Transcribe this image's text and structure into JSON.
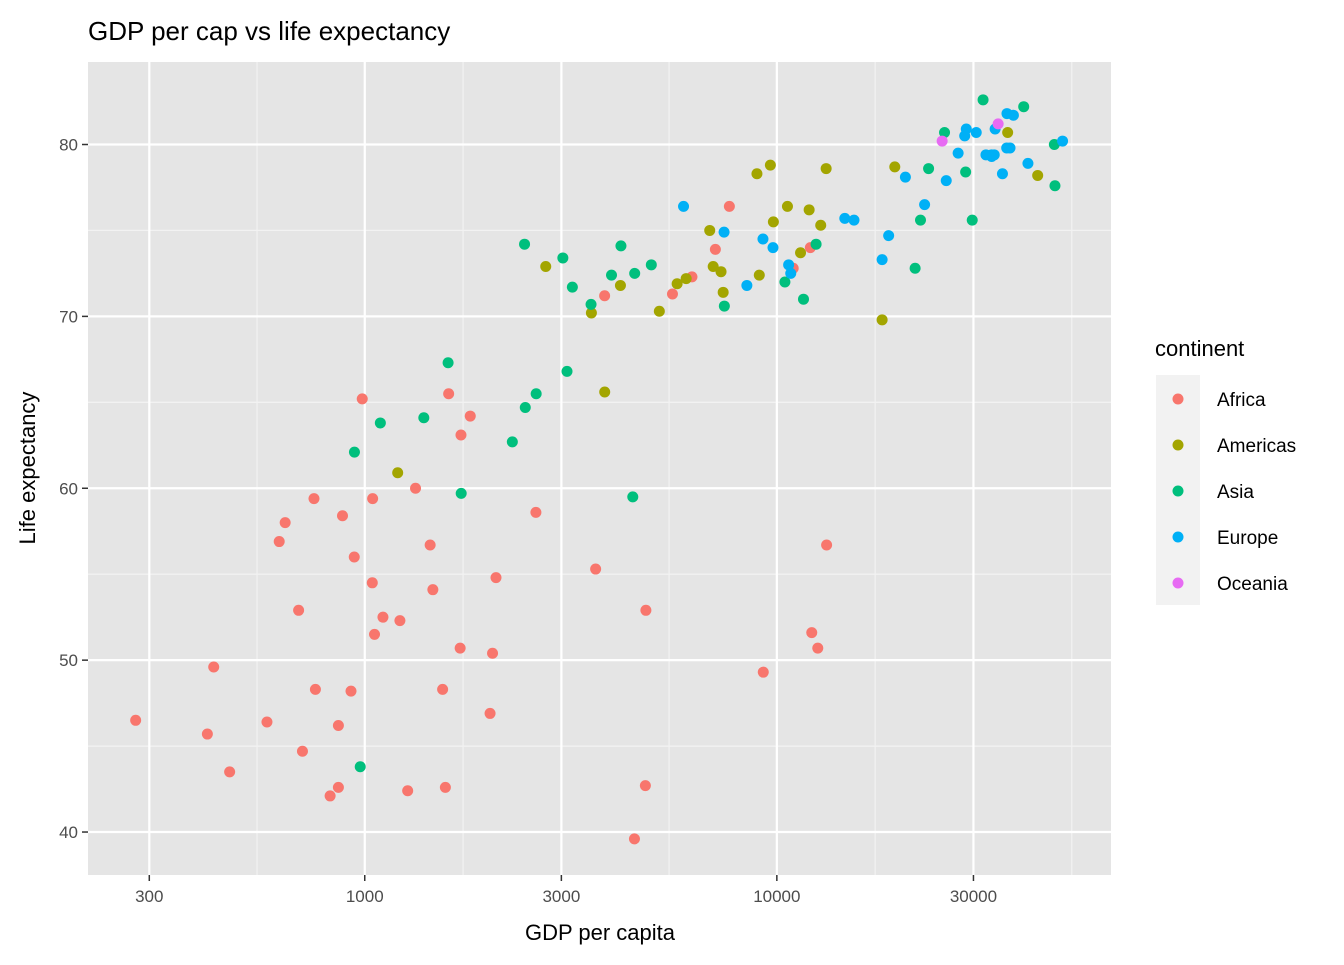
{
  "chart_data": {
    "type": "scatter",
    "title": "GDP per cap vs life expectancy",
    "xlabel": "GDP per capita",
    "ylabel": "Life expectancy",
    "x_scale": "log10",
    "xlim": [
      213,
      64700
    ],
    "ylim": [
      37.5,
      84.8
    ],
    "x_ticks": [
      300,
      1000,
      3000,
      10000,
      30000
    ],
    "x_tick_labels": [
      "300",
      "1000",
      "3000",
      "10000",
      "30000"
    ],
    "y_ticks": [
      40,
      50,
      60,
      70,
      80
    ],
    "y_tick_labels": [
      "40",
      "50",
      "60",
      "70",
      "80"
    ],
    "grid": true,
    "panel_background": "#E5E5E5",
    "legend": {
      "title": "continent",
      "placement": "right",
      "entries": [
        "Africa",
        "Americas",
        "Asia",
        "Europe",
        "Oceania"
      ]
    },
    "colors": {
      "Africa": "#F8766D",
      "Americas": "#A3A500",
      "Asia": "#00BF7D",
      "Europe": "#00B0F6",
      "Oceania": "#E76BF3"
    },
    "series": [
      {
        "name": "Africa",
        "points": [
          [
            6223,
            72.3
          ],
          [
            4797,
            42.7
          ],
          [
            1441,
            56.7
          ],
          [
            12570,
            50.7
          ],
          [
            1217,
            52.3
          ],
          [
            430,
            49.6
          ],
          [
            2042,
            50.4
          ],
          [
            706,
            44.7
          ],
          [
            1704,
            50.7
          ],
          [
            986,
            65.2
          ],
          [
            278,
            46.5
          ],
          [
            3633,
            55.3
          ],
          [
            1545,
            48.3
          ],
          [
            2082,
            54.8
          ],
          [
            5581,
            71.3
          ],
          [
            12154,
            51.6
          ],
          [
            641,
            58.0
          ],
          [
            691,
            52.9
          ],
          [
            13206,
            56.7
          ],
          [
            753,
            59.4
          ],
          [
            1328,
            60.0
          ],
          [
            943,
            56.0
          ],
          [
            579,
            46.4
          ],
          [
            1463,
            54.1
          ],
          [
            1569,
            42.6
          ],
          [
            415,
            45.7
          ],
          [
            12058,
            74.0
          ],
          [
            1045,
            59.4
          ],
          [
            759,
            48.3
          ],
          [
            1043,
            54.5
          ],
          [
            1803,
            64.2
          ],
          [
            10957,
            72.8
          ],
          [
            3820,
            71.2
          ],
          [
            824,
            42.1
          ],
          [
            4811,
            52.9
          ],
          [
            620,
            56.9
          ],
          [
            2014,
            46.9
          ],
          [
            7670,
            76.4
          ],
          [
            863,
            46.2
          ],
          [
            1598,
            65.5
          ],
          [
            1712,
            63.1
          ],
          [
            863,
            42.6
          ],
          [
            926,
            48.2
          ],
          [
            9270,
            49.3
          ],
          [
            2602,
            58.6
          ],
          [
            4513,
            39.6
          ],
          [
            1107,
            52.5
          ],
          [
            883,
            58.4
          ],
          [
            7093,
            73.9
          ],
          [
            1056,
            51.5
          ],
          [
            1271,
            42.4
          ],
          [
            470,
            43.5
          ]
        ]
      },
      {
        "name": "Americas",
        "points": [
          [
            12779,
            75.3
          ],
          [
            3822,
            65.6
          ],
          [
            9066,
            72.4
          ],
          [
            36319,
            80.7
          ],
          [
            13172,
            78.6
          ],
          [
            7007,
            72.9
          ],
          [
            9645,
            78.8
          ],
          [
            8948,
            78.3
          ],
          [
            6025,
            72.2
          ],
          [
            6873,
            75.0
          ],
          [
            5728,
            71.9
          ],
          [
            5186,
            70.3
          ],
          [
            1202,
            60.9
          ],
          [
            3548,
            70.2
          ],
          [
            7321,
            72.6
          ],
          [
            11978,
            76.2
          ],
          [
            2749,
            72.9
          ],
          [
            9809,
            75.5
          ],
          [
            4173,
            71.8
          ],
          [
            7409,
            71.4
          ],
          [
            19329,
            78.7
          ],
          [
            18009,
            69.8
          ],
          [
            42952,
            78.2
          ],
          [
            10611,
            76.4
          ],
          [
            11416,
            73.7
          ]
        ]
      },
      {
        "name": "Asia",
        "points": [
          [
            975,
            43.8
          ],
          [
            29796,
            75.6
          ],
          [
            1391,
            64.1
          ],
          [
            1714,
            59.7
          ],
          [
            4959,
            73.0
          ],
          [
            39725,
            82.2
          ],
          [
            2452,
            64.7
          ],
          [
            3541,
            70.7
          ],
          [
            11606,
            71.0
          ],
          [
            4471,
            59.5
          ],
          [
            25523,
            80.7
          ],
          [
            31656,
            82.6
          ],
          [
            4519,
            72.5
          ],
          [
            1593,
            67.3
          ],
          [
            23348,
            78.6
          ],
          [
            47307,
            77.6
          ],
          [
            10461,
            72.0
          ],
          [
            12452,
            74.2
          ],
          [
            3096,
            66.8
          ],
          [
            944,
            62.1
          ],
          [
            1091,
            63.8
          ],
          [
            22316,
            75.6
          ],
          [
            2606,
            65.5
          ],
          [
            3190,
            71.7
          ],
          [
            21655,
            72.8
          ],
          [
            47143,
            80.0
          ],
          [
            3970,
            72.4
          ],
          [
            4185,
            74.1
          ],
          [
            28718,
            78.4
          ],
          [
            7458,
            70.6
          ],
          [
            2442,
            74.2
          ],
          [
            3025,
            73.4
          ],
          [
            2281,
            62.7
          ]
        ]
      },
      {
        "name": "Europe",
        "points": [
          [
            5937,
            76.4
          ],
          [
            36126,
            79.8
          ],
          [
            33693,
            79.4
          ],
          [
            7446,
            74.9
          ],
          [
            10681,
            73.0
          ],
          [
            14619,
            75.7
          ],
          [
            22833,
            76.5
          ],
          [
            35278,
            78.3
          ],
          [
            33207,
            79.3
          ],
          [
            30470,
            80.7
          ],
          [
            32170,
            79.4
          ],
          [
            27538,
            79.5
          ],
          [
            18009,
            73.3
          ],
          [
            36181,
            81.8
          ],
          [
            40676,
            78.9
          ],
          [
            28570,
            80.5
          ],
          [
            9254,
            74.5
          ],
          [
            36798,
            79.8
          ],
          [
            49357,
            80.2
          ],
          [
            15390,
            75.6
          ],
          [
            20510,
            78.1
          ],
          [
            10808,
            72.5
          ],
          [
            9787,
            74.0
          ],
          [
            18678,
            74.7
          ],
          [
            25768,
            77.9
          ],
          [
            28821,
            80.9
          ],
          [
            33860,
            80.9
          ],
          [
            37506,
            81.7
          ],
          [
            8458,
            71.8
          ],
          [
            33203,
            79.4
          ]
        ]
      },
      {
        "name": "Oceania",
        "points": [
          [
            34435,
            81.2
          ],
          [
            25185,
            80.2
          ]
        ]
      }
    ]
  }
}
